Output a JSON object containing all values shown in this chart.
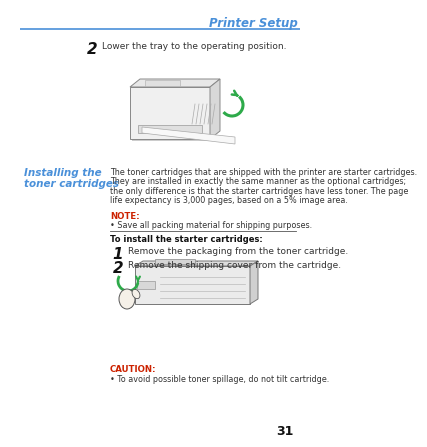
{
  "bg_color": "#ffffff",
  "header_title": "Printer Setup",
  "header_title_color": "#4a90d9",
  "header_line_color": "#4a90d9",
  "step2_number": "2",
  "step2_text": "Lower the tray to the operating position.",
  "section_title_line1": "Installing the",
  "section_title_line2": "toner cartridges",
  "section_title_color": "#4a90d9",
  "body_text_lines": [
    "The toner cartridges that are shipped with the printer are starter cartridges.",
    "They are installed in exactly the same manner as the optional cartridges;",
    "the only difference is that the starter cartridges have less toner. The page",
    "life expectancy is 3,000 pages, based on a 5% image area."
  ],
  "note_label": "NOTE:",
  "note_label_color": "#cc2200",
  "note_text": "• Save all packing material for shipping purposes.",
  "install_header": "To install the starter cartridges:",
  "step1_number": "1",
  "step1_text": "Remove the packaging from the toner cartridge.",
  "step2b_number": "2",
  "step2b_text": "Remove the shipping cover from the cartridge.",
  "caution_label": "CAUTION:",
  "caution_label_color": "#cc2200",
  "caution_text": "• To avoid possible toner spillage, do not tilt cartridge.",
  "page_number": "31",
  "text_color": "#333333",
  "dark_color": "#111111"
}
